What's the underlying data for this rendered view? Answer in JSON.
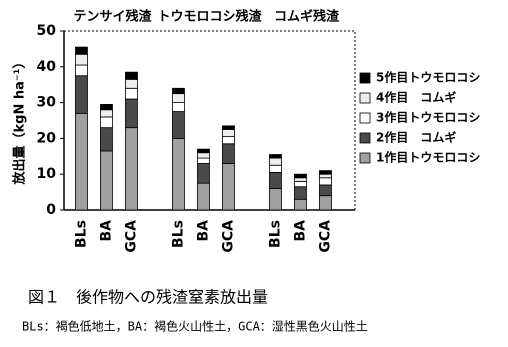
{
  "chart_data": {
    "type": "bar",
    "stacked": true,
    "y_label": "放出量（kgN ha⁻¹）",
    "groups": [
      "テンサイ残渣",
      "トウモロコシ残渣",
      "コムギ残渣"
    ],
    "categories": [
      "BLs",
      "BA",
      "GCA",
      "BLs",
      "BA",
      "GCA",
      "BLs",
      "BA",
      "GCA"
    ],
    "series": [
      {
        "name": "1作目トウモロコシ",
        "color": "#a0a0a0",
        "values": [
          27,
          16.5,
          23,
          20,
          7.5,
          13,
          6,
          3,
          4
        ]
      },
      {
        "name": "2作目　コムギ",
        "color": "#4a4a4a",
        "values": [
          10.5,
          6.5,
          8,
          7.5,
          5.5,
          5.5,
          4.5,
          3.5,
          3
        ]
      },
      {
        "name": "3作目トウモロコシ",
        "color": "#ffffff",
        "values": [
          3,
          3,
          3,
          2.5,
          1.5,
          2,
          2,
          1.5,
          2
        ]
      },
      {
        "name": "4作目　コムギ",
        "color": "#eeeeee",
        "values": [
          3,
          2,
          2.5,
          2.5,
          1.5,
          2,
          2,
          1,
          1
        ]
      },
      {
        "name": "5作目トウモロコシ",
        "color": "#000000",
        "values": [
          2,
          1.5,
          2,
          1.5,
          1,
          1,
          1,
          1,
          1
        ]
      }
    ],
    "ylim": [
      0,
      50
    ],
    "yticks": [
      0,
      10,
      20,
      30,
      40,
      50
    ],
    "grid": false
  },
  "caption": {
    "title": "図１　後作物への残渣窒素放出量",
    "note": "BLs：褐色低地土，BA：褐色火山性土，GCA：湿性黒色火山性土"
  }
}
